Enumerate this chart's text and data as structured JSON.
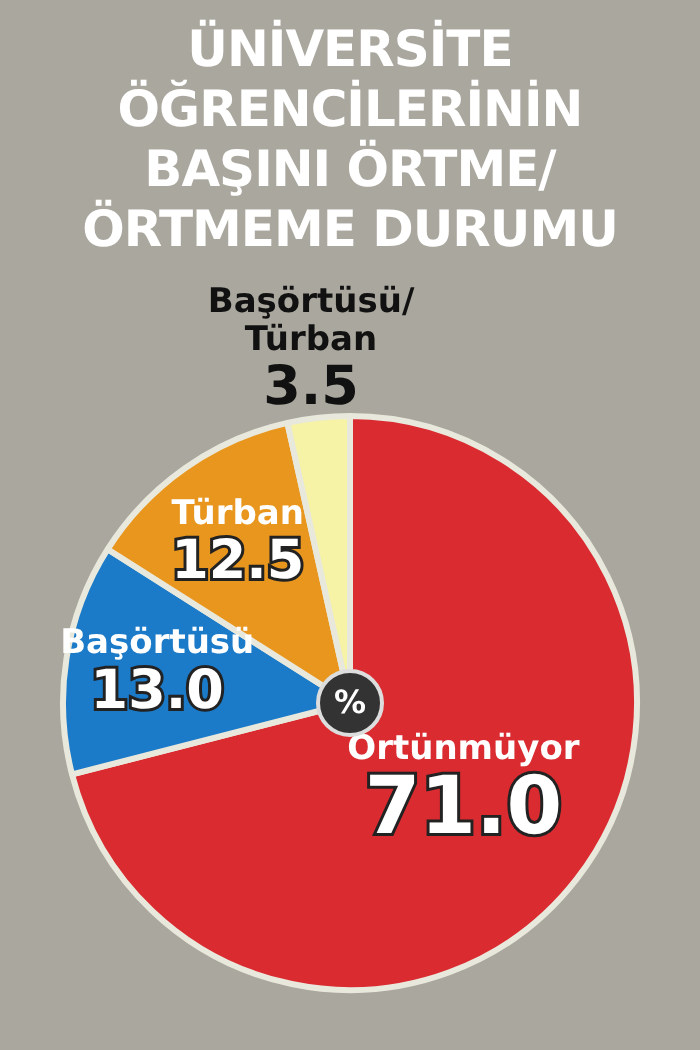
{
  "chart_data": {
    "type": "pie",
    "title": "ÜNİVERSİTE ÖĞRENCİLERİNİN BAŞINI ÖRTME/ ÖRTMEME DURUMU",
    "categories": [
      "Örtünmüyor",
      "Başörtüsü",
      "Türban",
      "Başörtüsü/Türban"
    ],
    "values": [
      71.0,
      13.0,
      12.5,
      3.5
    ],
    "colors": [
      "#d92b30",
      "#1b7bc9",
      "#e8961e",
      "#f6f3a6"
    ],
    "value_labels": [
      "71.0",
      "13.0",
      "12.5",
      "3.5"
    ],
    "annotations": [
      "%"
    ],
    "legend": false
  }
}
